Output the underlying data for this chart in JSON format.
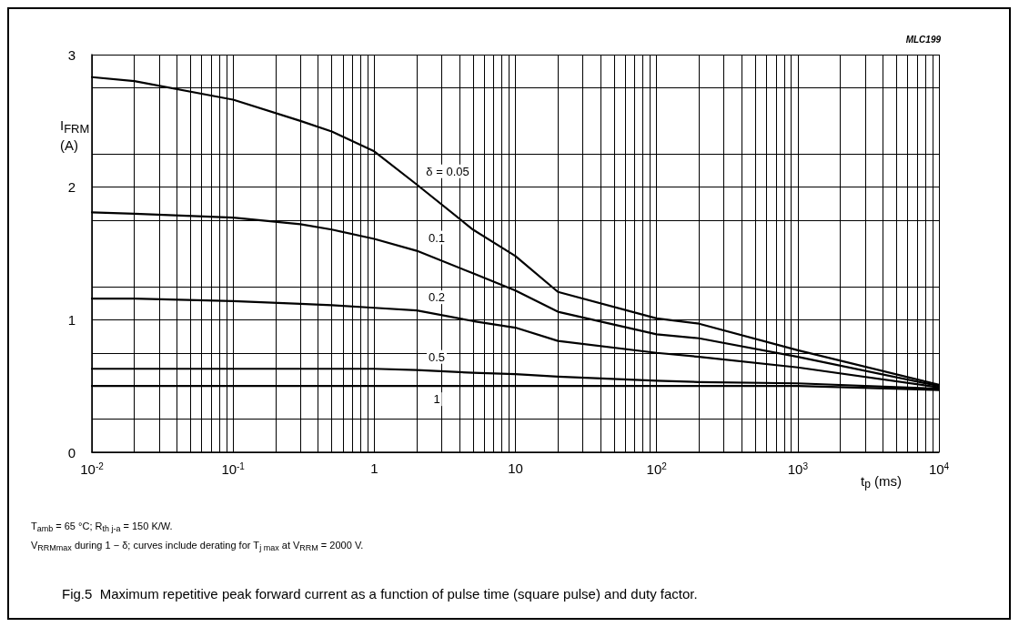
{
  "chart_data": {
    "type": "line",
    "title": "Fig.5  Maximum repetitive peak forward current as a function of pulse time (square pulse) and duty factor.",
    "xlabel": "t$_{p}$ (ms)",
    "ylabel": "I$_{FRM}$\n(A)",
    "log": "x",
    "grid": true,
    "marker": "none",
    "line_style": "solid",
    "xlim": [
      0.01,
      10000
    ],
    "xticks": [
      {
        "value": 0.01,
        "label": "10$^{-2}$"
      },
      {
        "value": 0.1,
        "label": "10$^{-1}$"
      },
      1,
      10,
      {
        "value": 100,
        "label": "10$^{2}$"
      },
      {
        "value": 1000,
        "label": "10$^{3}$"
      },
      {
        "value": 10000,
        "label": "10$^{4}$"
      }
    ],
    "ylim": [
      0,
      3
    ],
    "yticks": [
      0,
      1,
      2,
      3
    ],
    "x": [
      0.01,
      0.02,
      0.1,
      0.3,
      0.5,
      1,
      2,
      5,
      10,
      20,
      100,
      200,
      1000,
      10000
    ],
    "series": [
      {
        "name": "δ = 0.05",
        "color": "#000000",
        "values": [
          2.83,
          2.8,
          2.66,
          2.5,
          2.42,
          2.27,
          2.02,
          1.68,
          1.48,
          1.21,
          1.01,
          0.97,
          0.77,
          0.51
        ]
      },
      {
        "name": "0.1",
        "color": "#000000",
        "values": [
          1.81,
          1.8,
          1.77,
          1.72,
          1.68,
          1.61,
          1.52,
          1.35,
          1.22,
          1.06,
          0.89,
          0.86,
          0.72,
          0.5
        ]
      },
      {
        "name": "0.2",
        "color": "#000000",
        "values": [
          1.16,
          1.16,
          1.14,
          1.12,
          1.11,
          1.09,
          1.07,
          0.99,
          0.94,
          0.84,
          0.75,
          0.72,
          0.64,
          0.49
        ]
      },
      {
        "name": "0.5",
        "color": "#000000",
        "values": [
          0.63,
          0.63,
          0.63,
          0.63,
          0.63,
          0.63,
          0.62,
          0.6,
          0.59,
          0.57,
          0.54,
          0.53,
          0.52,
          0.48
        ]
      },
      {
        "name": "1",
        "color": "#000000",
        "values": [
          0.5,
          0.5,
          0.5,
          0.5,
          0.5,
          0.5,
          0.5,
          0.5,
          0.5,
          0.5,
          0.5,
          0.5,
          0.5,
          0.47
        ]
      }
    ],
    "annotations": [
      "MLC199",
      "T$_{amb}$ = 65 °C; R$_{th j-a}$ = 150 K/W.",
      "V$_{RRMmax}$ during 1 − δ; curves include derating for T$_{j max}$ at V$_{RRM}$ = 2000 V."
    ]
  }
}
